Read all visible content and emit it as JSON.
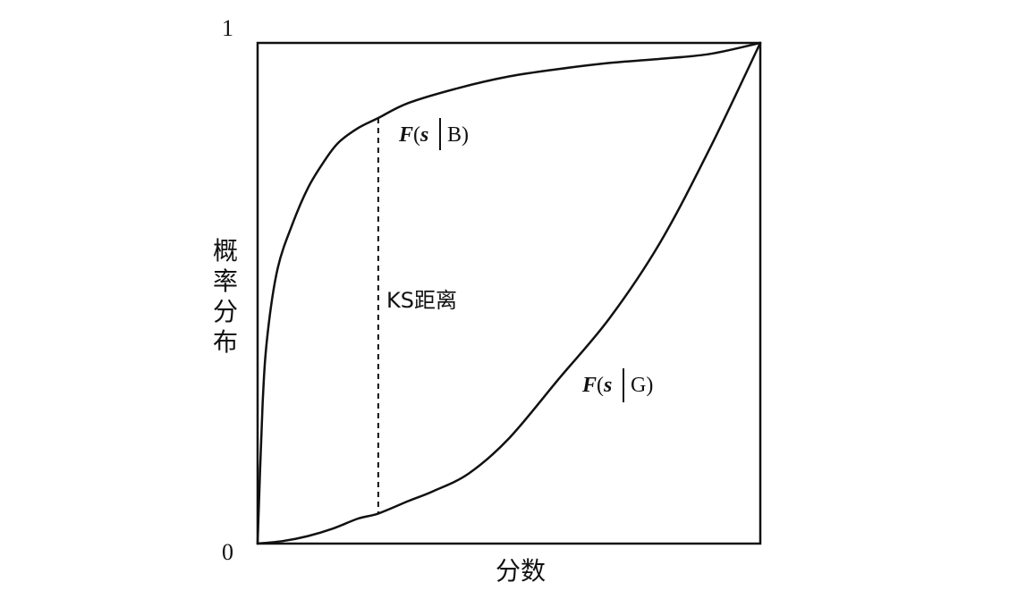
{
  "chart_data": {
    "type": "line",
    "xlabel": "分数",
    "ylabel": "概率分布",
    "ylabel_chars": [
      "概",
      "率",
      "分",
      "布"
    ],
    "xlim": [
      0,
      1
    ],
    "ylim": [
      0,
      1
    ],
    "yticks": [
      "0",
      "1"
    ],
    "grid": false,
    "annotation": {
      "text": "KS距离",
      "x": 0.24,
      "y_from": 0.06,
      "y_to": 0.85
    },
    "series": [
      {
        "name": "F(s|B)",
        "label_prefix": "F",
        "label_open": "(",
        "label_var": "s",
        "label_cond": "B",
        "label_close": ")",
        "x": [
          0,
          0.01,
          0.02,
          0.04,
          0.07,
          0.1,
          0.13,
          0.16,
          0.2,
          0.24,
          0.3,
          0.4,
          0.5,
          0.6,
          0.7,
          0.8,
          0.9,
          1.0
        ],
        "y": [
          0,
          0.28,
          0.42,
          0.55,
          0.64,
          0.71,
          0.76,
          0.8,
          0.83,
          0.85,
          0.88,
          0.91,
          0.933,
          0.948,
          0.96,
          0.968,
          0.978,
          1.0
        ]
      },
      {
        "name": "F(s|G)",
        "label_prefix": "F",
        "label_open": "(",
        "label_var": "s",
        "label_cond": "G",
        "label_close": ")",
        "x": [
          0,
          0.05,
          0.1,
          0.15,
          0.2,
          0.24,
          0.3,
          0.35,
          0.42,
          0.5,
          0.6,
          0.7,
          0.8,
          0.9,
          1.0
        ],
        "y": [
          0,
          0.005,
          0.015,
          0.03,
          0.05,
          0.06,
          0.085,
          0.105,
          0.14,
          0.21,
          0.33,
          0.45,
          0.6,
          0.79,
          1.0
        ]
      }
    ]
  }
}
